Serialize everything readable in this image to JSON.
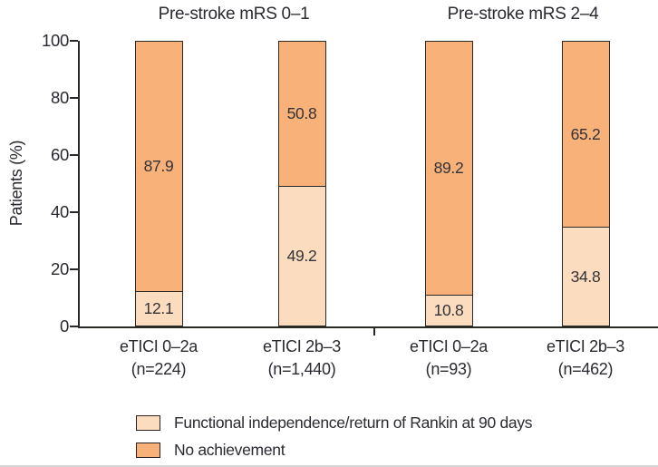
{
  "chart_data": {
    "type": "bar",
    "stacked": true,
    "title": "",
    "ylabel": "Patients (%)",
    "ylim": [
      0,
      100
    ],
    "yticks": [
      0,
      20,
      40,
      60,
      80,
      100
    ],
    "grid": false,
    "legend_position": "bottom",
    "panels": [
      {
        "title": "Pre-stroke mRS 0–1",
        "bars": [
          {
            "category_line1": "eTICI 0–2a",
            "category_line2": "(n=224)",
            "independence": 12.1,
            "no_achievement": 87.9
          },
          {
            "category_line1": "eTICI 2b–3",
            "category_line2": "(n=1,440)",
            "independence": 49.2,
            "no_achievement": 50.8
          }
        ]
      },
      {
        "title": "Pre-stroke mRS 2–4",
        "bars": [
          {
            "category_line1": "eTICI 0–2a",
            "category_line2": "(n=93)",
            "independence": 10.8,
            "no_achievement": 89.2
          },
          {
            "category_line1": "eTICI 2b–3",
            "category_line2": "(n=462)",
            "independence": 34.8,
            "no_achievement": 65.2
          }
        ]
      }
    ],
    "series": [
      {
        "name": "Functional independence/return of Rankin at 90 days",
        "values": [
          12.1,
          49.2,
          10.8,
          34.8
        ],
        "color": "#fbdcbf"
      },
      {
        "name": "No achievement",
        "values": [
          87.9,
          50.8,
          89.2,
          65.2
        ],
        "color": "#f8b179"
      }
    ],
    "legend": [
      {
        "label": "Functional independence/return of Rankin at 90 days",
        "color": "#fbdcbf"
      },
      {
        "label": "No achievement",
        "color": "#f8b179"
      }
    ],
    "colors": {
      "independence_fill": "#fbdcbf",
      "no_achievement_fill": "#f8b179",
      "axis": "#2b2926",
      "text": "#2a2a31"
    }
  }
}
